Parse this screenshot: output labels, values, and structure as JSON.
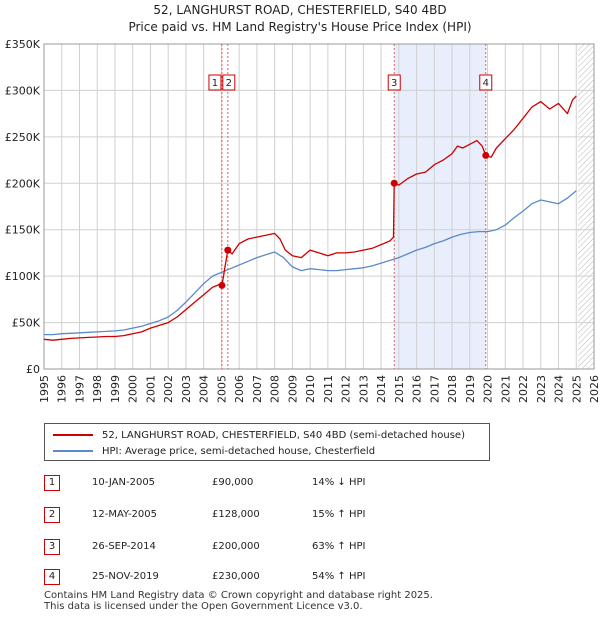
{
  "title": {
    "line1": "52, LANGHURST ROAD, CHESTERFIELD, S40 4BD",
    "line2": "Price paid vs. HM Land Registry's House Price Index (HPI)"
  },
  "colors": {
    "price_line": "#cc0000",
    "hpi_line": "#5b8ac8",
    "shade": "#e8eefb",
    "grid": "#d0d0d0",
    "marker_line": "#e06060",
    "hatch": "#888888"
  },
  "legend": {
    "price_label": "52, LANGHURST ROAD, CHESTERFIELD, S40 4BD (semi-detached house)",
    "hpi_label": "HPI: Average price, semi-detached house, Chesterfield"
  },
  "transactions": [
    {
      "num": "1",
      "date": "10-JAN-2005",
      "price": "£90,000",
      "hpi": "14% ↓ HPI"
    },
    {
      "num": "2",
      "date": "12-MAY-2005",
      "price": "£128,000",
      "hpi": "15% ↑ HPI"
    },
    {
      "num": "3",
      "date": "26-SEP-2014",
      "price": "£200,000",
      "hpi": "63% ↑ HPI"
    },
    {
      "num": "4",
      "date": "25-NOV-2019",
      "price": "£230,000",
      "hpi": "54% ↑ HPI"
    }
  ],
  "footer": {
    "line1": "Contains HM Land Registry data © Crown copyright and database right 2025.",
    "line2": "This data is licensed under the Open Government Licence v3.0."
  },
  "chart_data": {
    "type": "line",
    "title": "52, LANGHURST ROAD, CHESTERFIELD, S40 4BD — Price paid vs. HM Land Registry's House Price Index (HPI)",
    "xlim": [
      1995,
      2026
    ],
    "ylim": [
      0,
      350000
    ],
    "x_ticks": [
      1995,
      1996,
      1997,
      1998,
      1999,
      2000,
      2001,
      2002,
      2003,
      2004,
      2005,
      2006,
      2007,
      2008,
      2009,
      2010,
      2011,
      2012,
      2013,
      2014,
      2015,
      2016,
      2017,
      2018,
      2019,
      2020,
      2021,
      2022,
      2023,
      2024,
      2025,
      2026
    ],
    "y_ticks": [
      {
        "value": 0,
        "label": "£0"
      },
      {
        "value": 50000,
        "label": "£50K"
      },
      {
        "value": 100000,
        "label": "£100K"
      },
      {
        "value": 150000,
        "label": "£150K"
      },
      {
        "value": 200000,
        "label": "£200K"
      },
      {
        "value": 250000,
        "label": "£250K"
      },
      {
        "value": 300000,
        "label": "£300K"
      },
      {
        "value": 350000,
        "label": "£350K"
      }
    ],
    "shaded_range": [
      2014.74,
      2019.9
    ],
    "future_hatch_from": 2025.1,
    "markers": [
      {
        "label": "1",
        "x": 2005.03,
        "y": 90000
      },
      {
        "label": "2",
        "x": 2005.36,
        "y": 128000
      },
      {
        "label": "3",
        "x": 2014.74,
        "y": 200000
      },
      {
        "label": "4",
        "x": 2019.9,
        "y": 230000
      }
    ],
    "series": [
      {
        "name": "52, LANGHURST ROAD, CHESTERFIELD, S40 4BD (semi-detached house)",
        "x": [
          1995.0,
          1995.5,
          1996.0,
          1996.5,
          1997.0,
          1997.5,
          1998.0,
          1998.5,
          1999.0,
          1999.5,
          2000.0,
          2000.5,
          2001.0,
          2001.5,
          2002.0,
          2002.5,
          2003.0,
          2003.5,
          2004.0,
          2004.5,
          2005.0,
          2005.03,
          2005.2,
          2005.36,
          2005.6,
          2006.0,
          2006.5,
          2007.0,
          2007.5,
          2008.0,
          2008.3,
          2008.6,
          2009.0,
          2009.5,
          2010.0,
          2010.5,
          2011.0,
          2011.5,
          2012.0,
          2012.5,
          2013.0,
          2013.5,
          2014.0,
          2014.5,
          2014.7,
          2014.74,
          2015.0,
          2015.5,
          2016.0,
          2016.5,
          2017.0,
          2017.5,
          2018.0,
          2018.3,
          2018.6,
          2019.0,
          2019.4,
          2019.7,
          2019.9,
          2020.2,
          2020.5,
          2021.0,
          2021.5,
          2022.0,
          2022.5,
          2023.0,
          2023.5,
          2024.0,
          2024.5,
          2024.8,
          2025.0
        ],
        "y": [
          32000,
          31000,
          32000,
          33000,
          33500,
          34000,
          34500,
          35000,
          35000,
          36000,
          38000,
          40000,
          44000,
          47000,
          50000,
          56000,
          64000,
          72000,
          80000,
          88000,
          92000,
          90000,
          110000,
          128000,
          124000,
          135000,
          140000,
          142000,
          144000,
          146000,
          140000,
          128000,
          122000,
          120000,
          128000,
          125000,
          122000,
          125000,
          125000,
          126000,
          128000,
          130000,
          134000,
          138000,
          142000,
          200000,
          198000,
          205000,
          210000,
          212000,
          220000,
          225000,
          232000,
          240000,
          238000,
          242000,
          246000,
          240000,
          230000,
          228000,
          238000,
          248000,
          258000,
          270000,
          282000,
          288000,
          280000,
          286000,
          275000,
          290000,
          294000
        ]
      },
      {
        "name": "HPI: Average price, semi-detached house, Chesterfield",
        "x": [
          1995.0,
          1995.5,
          1996.0,
          1996.5,
          1997.0,
          1997.5,
          1998.0,
          1998.5,
          1999.0,
          1999.5,
          2000.0,
          2000.5,
          2001.0,
          2001.5,
          2002.0,
          2002.5,
          2003.0,
          2003.5,
          2004.0,
          2004.5,
          2005.0,
          2005.5,
          2006.0,
          2006.5,
          2007.0,
          2007.5,
          2008.0,
          2008.5,
          2009.0,
          2009.5,
          2010.0,
          2010.5,
          2011.0,
          2011.5,
          2012.0,
          2012.5,
          2013.0,
          2013.5,
          2014.0,
          2014.5,
          2015.0,
          2015.5,
          2016.0,
          2016.5,
          2017.0,
          2017.5,
          2018.0,
          2018.5,
          2019.0,
          2019.5,
          2020.0,
          2020.5,
          2021.0,
          2021.5,
          2022.0,
          2022.5,
          2023.0,
          2023.5,
          2024.0,
          2024.5,
          2025.0
        ],
        "y": [
          37000,
          37000,
          38000,
          38500,
          39000,
          39500,
          40000,
          40500,
          41000,
          42000,
          44000,
          46000,
          49000,
          52000,
          56000,
          63000,
          72000,
          82000,
          92000,
          100000,
          104000,
          108000,
          112000,
          116000,
          120000,
          123000,
          126000,
          120000,
          110000,
          106000,
          108000,
          107000,
          106000,
          106000,
          107000,
          108000,
          109000,
          111000,
          114000,
          117000,
          120000,
          124000,
          128000,
          131000,
          135000,
          138000,
          142000,
          145000,
          147000,
          148000,
          148000,
          150000,
          155000,
          163000,
          170000,
          178000,
          182000,
          180000,
          178000,
          184000,
          192000
        ]
      }
    ]
  }
}
